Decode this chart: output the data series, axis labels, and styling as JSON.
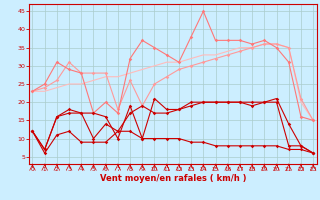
{
  "x": [
    0,
    1,
    2,
    3,
    4,
    5,
    6,
    7,
    8,
    9,
    10,
    11,
    12,
    13,
    14,
    15,
    16,
    17,
    18,
    19,
    20,
    21,
    22,
    23
  ],
  "series": [
    {
      "name": "line1_dark_main",
      "color": "#cc0000",
      "linewidth": 0.8,
      "marker": "D",
      "markersize": 1.8,
      "values": [
        12,
        7,
        16,
        18,
        17,
        17,
        16,
        10,
        19,
        10,
        21,
        18,
        18,
        20,
        20,
        20,
        20,
        20,
        20,
        20,
        21,
        14,
        8,
        6
      ]
    },
    {
      "name": "line2_dark",
      "color": "#cc0000",
      "linewidth": 0.8,
      "marker": "D",
      "markersize": 1.8,
      "values": [
        12,
        7,
        16,
        17,
        17,
        10,
        14,
        12,
        17,
        19,
        17,
        17,
        18,
        19,
        20,
        20,
        20,
        20,
        19,
        20,
        20,
        8,
        8,
        6
      ]
    },
    {
      "name": "line3_bottom",
      "color": "#cc0000",
      "linewidth": 0.8,
      "marker": "D",
      "markersize": 1.8,
      "values": [
        12,
        6,
        11,
        12,
        9,
        9,
        9,
        12,
        12,
        10,
        10,
        10,
        10,
        9,
        9,
        8,
        8,
        8,
        8,
        8,
        8,
        7,
        7,
        6
      ]
    },
    {
      "name": "line4_light1",
      "color": "#ff7777",
      "linewidth": 0.8,
      "marker": "D",
      "markersize": 1.8,
      "values": [
        23,
        25,
        31,
        29,
        28,
        17,
        20,
        17,
        32,
        37,
        35,
        33,
        31,
        38,
        45,
        37,
        37,
        37,
        36,
        37,
        35,
        31,
        16,
        15
      ]
    },
    {
      "name": "line5_light2",
      "color": "#ff9999",
      "linewidth": 0.8,
      "marker": "D",
      "markersize": 1.8,
      "values": [
        23,
        24,
        26,
        31,
        28,
        28,
        28,
        18,
        26,
        19,
        25,
        27,
        29,
        30,
        31,
        32,
        33,
        34,
        35,
        36,
        36,
        35,
        21,
        15
      ]
    },
    {
      "name": "line6_lightest",
      "color": "#ffbbbb",
      "linewidth": 0.8,
      "marker": null,
      "markersize": 0,
      "values": [
        23,
        23,
        24,
        25,
        25,
        26,
        27,
        27,
        28,
        29,
        30,
        31,
        31,
        32,
        33,
        33,
        34,
        35,
        35,
        36,
        36,
        35,
        20,
        15
      ]
    }
  ],
  "xlim": [
    -0.3,
    23.3
  ],
  "ylim": [
    3,
    47
  ],
  "yticks": [
    5,
    10,
    15,
    20,
    25,
    30,
    35,
    40,
    45
  ],
  "xticks": [
    0,
    1,
    2,
    3,
    4,
    5,
    6,
    7,
    8,
    9,
    10,
    11,
    12,
    13,
    14,
    15,
    16,
    17,
    18,
    19,
    20,
    21,
    22,
    23
  ],
  "xlabel": "Vent moyen/en rafales ( km/h )",
  "xlabel_color": "#cc0000",
  "bg_color": "#cceeff",
  "grid_color": "#aacccc",
  "tick_color": "#cc0000",
  "axes_color": "#cc0000"
}
